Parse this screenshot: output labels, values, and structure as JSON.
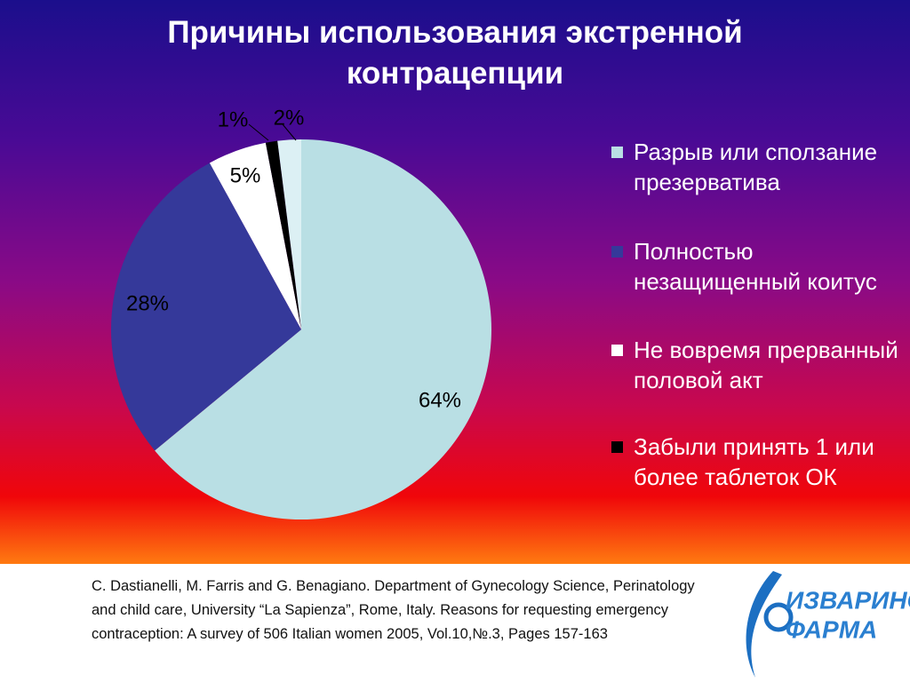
{
  "chart_data": {
    "type": "pie",
    "title": "Причины использования экстренной контрацепции",
    "categories": [
      "Разрыв или сползание презерватива",
      "Полностью незащищенный коитус",
      "Не вовремя прерванный половой акт",
      "Забыли принять 1 или более таблеток ОК",
      null
    ],
    "values": [
      64,
      28,
      5,
      1,
      2
    ],
    "value_labels": [
      "64%",
      "28%",
      "5%",
      "1%",
      "2%"
    ],
    "colors": [
      "#b9dfe4",
      "#35399a",
      "#ffffff",
      "#000000",
      "#dcf0f4"
    ],
    "legend": "right"
  },
  "citation": [
    "C. Dastianelli, M. Farris and G. Benagiano. Department of Gynecology Science, Perinatology",
    "and child care, University “La Sapienza”, Rome, Italy. Reasons for requesting emergency",
    "contraception: A survey of 506 Italian women 2005, Vol.10,№.3, Pages 157-163"
  ],
  "logo": [
    "ИЗВАРИНО",
    "ФАРМА"
  ]
}
